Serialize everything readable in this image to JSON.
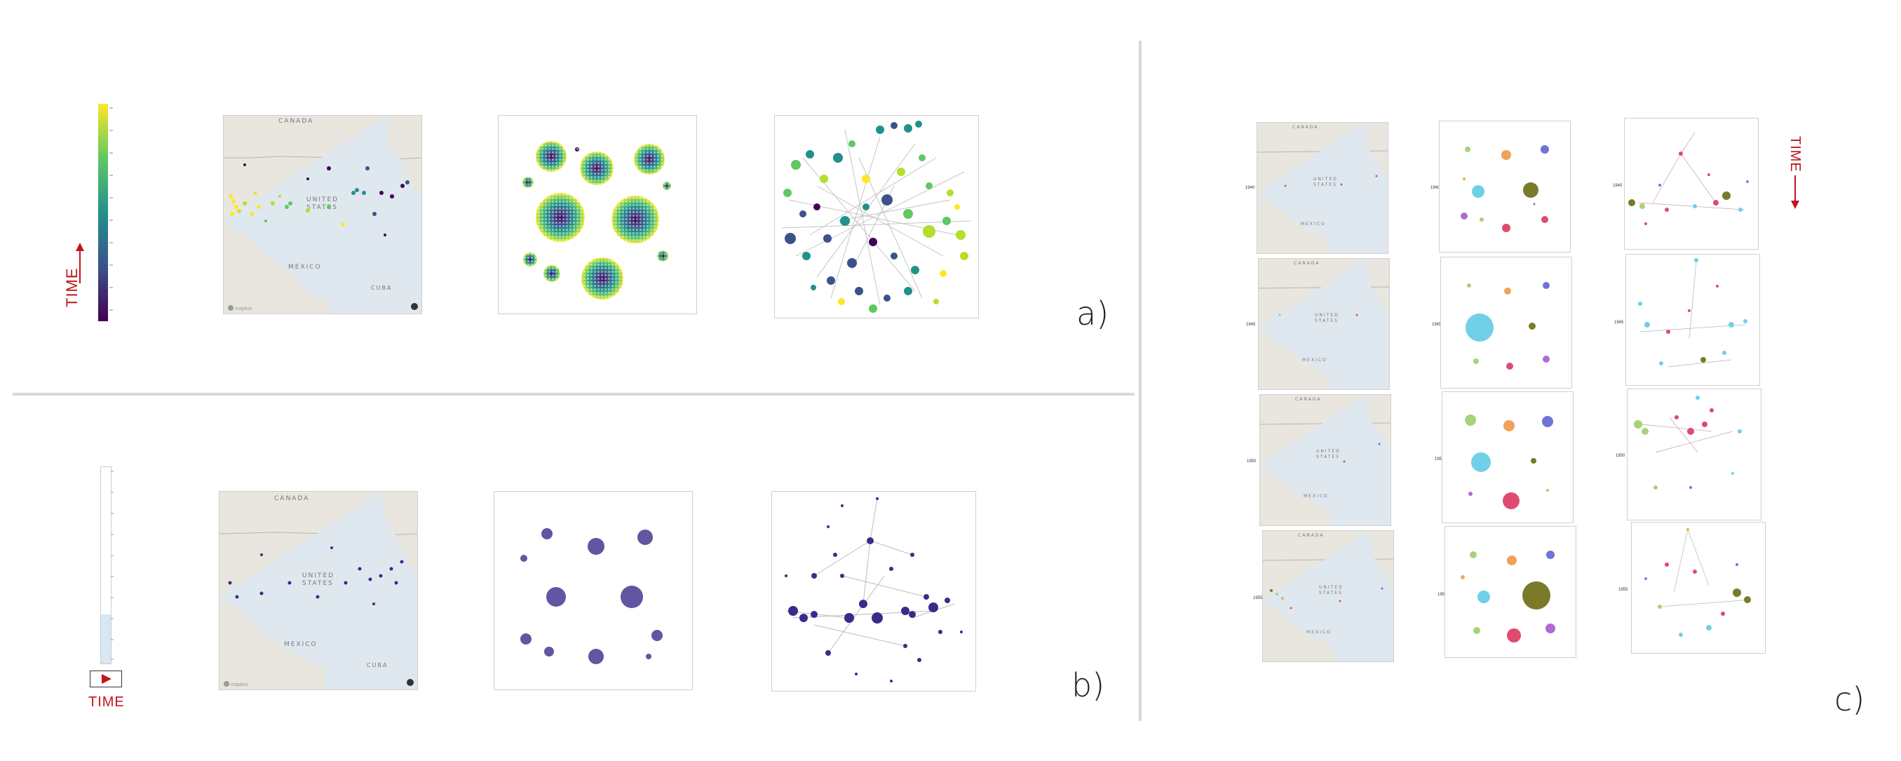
{
  "labels": {
    "a": "a)",
    "b": "b)",
    "c": "c)",
    "time": "TIME"
  },
  "map_text": {
    "canada": "CANADA",
    "united": "UNITED",
    "states": "STATES",
    "mexico": "MEXICO",
    "cuba": "CUBA",
    "mapbox": "mapbox",
    "info": "i"
  },
  "years": [
    "1940",
    "1945",
    "1950",
    "1955"
  ],
  "colors": {
    "time_red": "#c0161c",
    "viridis": [
      "#440154",
      "#3b528b",
      "#21918c",
      "#5ec962",
      "#fde725"
    ],
    "category_palette": [
      "#6fd0e8",
      "#e04a6f",
      "#a7d27a",
      "#f0a259",
      "#6d74d6",
      "#b06ad6",
      "#7a7a2a",
      "#e5b05a"
    ]
  }
}
